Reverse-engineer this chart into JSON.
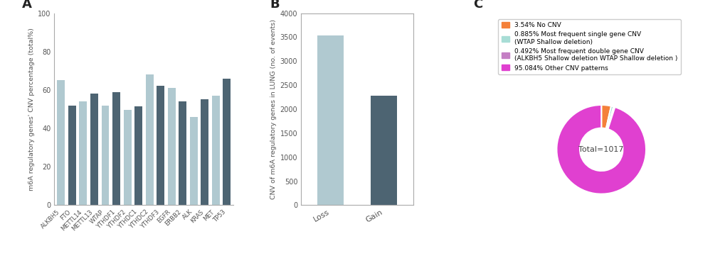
{
  "panel_a": {
    "categories": [
      "ALKBH5",
      "FTO",
      "METTL14",
      "METTL13",
      "WTAP",
      "YTHDF1",
      "YTHDF2",
      "YTHDC1",
      "YTHDC2",
      "YTHDF3",
      "EGFR",
      "ERBB2",
      "ALK",
      "KRAS",
      "MET",
      "TP53"
    ],
    "values": [
      65,
      52,
      54,
      58,
      52,
      59,
      49.5,
      51.5,
      68,
      62,
      61,
      54,
      46,
      55,
      57,
      66
    ],
    "colors": [
      "#b0c9d0",
      "#4d6472",
      "#b0c9d0",
      "#4d6472",
      "#b0c9d0",
      "#4d6472",
      "#b0c9d0",
      "#4d6472",
      "#b0c9d0",
      "#4d6472",
      "#b0c9d0",
      "#4d6472",
      "#b0c9d0",
      "#4d6472",
      "#b0c9d0",
      "#4d6472"
    ],
    "ylabel": "m6A regulatory genes' CNV percentage (total%)",
    "ylim": [
      0,
      100
    ],
    "yticks": [
      0,
      20,
      40,
      60,
      80,
      100
    ]
  },
  "panel_b": {
    "categories": [
      "Loss",
      "Gain"
    ],
    "values": [
      3530,
      2280
    ],
    "colors": [
      "#b0c9d0",
      "#4d6472"
    ],
    "ylabel": "CNV of m6A regulatory genes in LUNG (no. of events)",
    "ylim": [
      0,
      4000
    ],
    "yticks": [
      0,
      500,
      1000,
      1500,
      2000,
      2500,
      3000,
      3500,
      4000
    ]
  },
  "panel_c": {
    "slices": [
      3.54,
      0.885,
      0.492,
      95.084
    ],
    "colors": [
      "#f4803a",
      "#a8ddd6",
      "#c47fc4",
      "#e040d0"
    ],
    "labels": [
      "3.54% No CNV",
      "0.885% Most frequent single gene CNV\n(WTAP Shallow deletion)",
      "0.492% Most frequent double gene CNV\n(ALKBH5 Shallow deletion WTAP Shallow deletion )",
      "95.084% Other CNV patterns"
    ],
    "center_text": "Total=1017"
  },
  "panel_labels": [
    "A",
    "B",
    "C"
  ],
  "background_color": "#ffffff"
}
